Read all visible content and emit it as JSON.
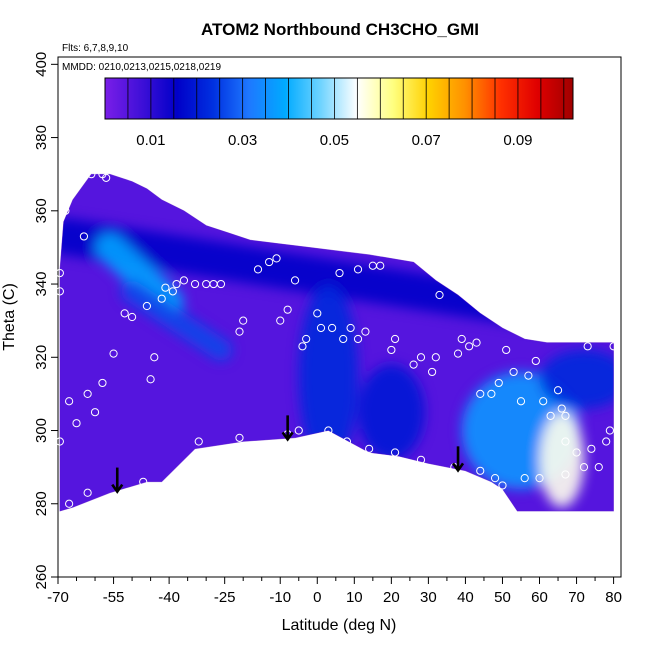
{
  "chart_data": {
    "type": "heatmap",
    "title": "ATOM2 Northbound CH3CHO_GMI",
    "annotations": {
      "flights": "Flts: 6,7,8,9,10",
      "mmdd": "MMDD: 0210,0213,0215,0218,0219"
    },
    "xlabel": "Latitude (deg N)",
    "ylabel": "Theta (C)",
    "xlim": [
      -70,
      82
    ],
    "ylim": [
      260,
      402
    ],
    "x_ticks": [
      -70,
      -55,
      -40,
      -25,
      -10,
      0,
      10,
      20,
      30,
      40,
      50,
      60,
      70,
      80
    ],
    "x_minor_ticks": [
      -65,
      -60,
      -50,
      -45,
      -35,
      -30,
      -20,
      -15,
      -5,
      5,
      15,
      25,
      35,
      45,
      55,
      65,
      75
    ],
    "y_ticks": [
      260,
      280,
      300,
      320,
      340,
      360,
      380,
      400
    ],
    "colorbar": {
      "range": [
        0,
        0.102
      ],
      "ticks": [
        0.01,
        0.03,
        0.05,
        0.07,
        0.09
      ],
      "colors": [
        "#7a1ee8",
        "#4010d8",
        "#0000c8",
        "#0030e0",
        "#1e78ff",
        "#00aaff",
        "#70d4ff",
        "#ffffff",
        "#ffff80",
        "#ffd000",
        "#ff9000",
        "#ff3000",
        "#e00000",
        "#a00000"
      ]
    },
    "envelope": {
      "top": [
        [
          -69.5,
          344
        ],
        [
          -68.5,
          357
        ],
        [
          -66,
          363
        ],
        [
          -61,
          370
        ],
        [
          -56,
          370
        ],
        [
          -50,
          368
        ],
        [
          -46,
          366
        ],
        [
          -42,
          363
        ],
        [
          -36,
          360
        ],
        [
          -30,
          356
        ],
        [
          -24,
          354
        ],
        [
          -18,
          352
        ],
        [
          -10,
          351
        ],
        [
          -2,
          350
        ],
        [
          6,
          349
        ],
        [
          14,
          348
        ],
        [
          20,
          347
        ],
        [
          26,
          346
        ],
        [
          32,
          341
        ],
        [
          38,
          337
        ],
        [
          44,
          332
        ],
        [
          50,
          328
        ],
        [
          56,
          325
        ],
        [
          62,
          324
        ],
        [
          70,
          324
        ],
        [
          80,
          324
        ]
      ],
      "bottom": [
        [
          -69.5,
          278
        ],
        [
          -66,
          279
        ],
        [
          -56,
          283
        ],
        [
          -46,
          286
        ],
        [
          -42,
          286
        ],
        [
          -33,
          295
        ],
        [
          -20,
          297
        ],
        [
          -6,
          298
        ],
        [
          3,
          300
        ],
        [
          14,
          294
        ],
        [
          22,
          293
        ],
        [
          30,
          291
        ],
        [
          40,
          289
        ],
        [
          47,
          286
        ],
        [
          50,
          284
        ],
        [
          54,
          278
        ],
        [
          80,
          278
        ]
      ]
    },
    "field": {
      "background": 0.005,
      "features": [
        {
          "label": "upper band",
          "kind": "line",
          "from": [
            -68,
            353
          ],
          "to": [
            72,
            331
          ],
          "value": 0.015,
          "width": 5
        },
        {
          "label": "cyan streak",
          "kind": "line",
          "from": [
            -56,
            350
          ],
          "to": [
            -40,
            335
          ],
          "value": 0.038,
          "width": 4
        },
        {
          "label": "mid streak",
          "kind": "line",
          "from": [
            -50,
            338
          ],
          "to": [
            -26,
            322
          ],
          "value": 0.026,
          "width": 3
        },
        {
          "label": "equator plume",
          "kind": "blob",
          "at": [
            3,
            315
          ],
          "value": 0.022,
          "rx": 8,
          "ry": 25
        },
        {
          "label": "mid-lat plume",
          "kind": "blob",
          "at": [
            20,
            305
          ],
          "value": 0.02,
          "rx": 9,
          "ry": 13
        },
        {
          "label": "northern tongue",
          "kind": "blob",
          "at": [
            55,
            300
          ],
          "value": 0.036,
          "rx": 16,
          "ry": 16
        },
        {
          "label": "northern core",
          "kind": "blob",
          "at": [
            66,
            292
          ],
          "value": 0.056,
          "rx": 6,
          "ry": 13
        },
        {
          "label": "arctic cap",
          "kind": "blob",
          "at": [
            72,
            314
          ],
          "value": 0.022,
          "rx": 12,
          "ry": 8
        }
      ]
    },
    "points": [
      [
        -61,
        370
      ],
      [
        -58,
        370
      ],
      [
        -57,
        369
      ],
      [
        -69.5,
        343
      ],
      [
        -69.5,
        338
      ],
      [
        -68,
        360
      ],
      [
        -63,
        353
      ],
      [
        -67,
        308
      ],
      [
        -65,
        302
      ],
      [
        -62,
        310
      ],
      [
        -60,
        305
      ],
      [
        -58,
        313
      ],
      [
        -55,
        321
      ],
      [
        -52,
        332
      ],
      [
        -50,
        331
      ],
      [
        -45,
        314
      ],
      [
        -44,
        320
      ],
      [
        -46,
        334
      ],
      [
        -42,
        336
      ],
      [
        -41,
        339
      ],
      [
        -39,
        338
      ],
      [
        -38,
        340
      ],
      [
        -36,
        341
      ],
      [
        -33,
        340
      ],
      [
        -30,
        340
      ],
      [
        -28,
        340
      ],
      [
        -26,
        340
      ],
      [
        -21,
        327
      ],
      [
        -20,
        330
      ],
      [
        -16,
        344
      ],
      [
        -13,
        346
      ],
      [
        -11,
        347
      ],
      [
        -8,
        333
      ],
      [
        -10,
        330
      ],
      [
        -6,
        341
      ],
      [
        -3,
        325
      ],
      [
        -4,
        323
      ],
      [
        1,
        328
      ],
      [
        0,
        332
      ],
      [
        4,
        328
      ],
      [
        6,
        343
      ],
      [
        7,
        325
      ],
      [
        9,
        328
      ],
      [
        11,
        325
      ],
      [
        11,
        344
      ],
      [
        13,
        327
      ],
      [
        15,
        345
      ],
      [
        17,
        345
      ],
      [
        20,
        322
      ],
      [
        21,
        325
      ],
      [
        26,
        318
      ],
      [
        28,
        320
      ],
      [
        31,
        316
      ],
      [
        32,
        320
      ],
      [
        33,
        337
      ],
      [
        36,
        344
      ],
      [
        38,
        321
      ],
      [
        39,
        325
      ],
      [
        41,
        323
      ],
      [
        43,
        324
      ],
      [
        44,
        310
      ],
      [
        47,
        310
      ],
      [
        49,
        313
      ],
      [
        51,
        322
      ],
      [
        53,
        316
      ],
      [
        55,
        308
      ],
      [
        57,
        315
      ],
      [
        59,
        319
      ],
      [
        61,
        308
      ],
      [
        63,
        304
      ],
      [
        65,
        311
      ],
      [
        66,
        306
      ],
      [
        67,
        304
      ],
      [
        67,
        297
      ],
      [
        70,
        294
      ],
      [
        72,
        290
      ],
      [
        74,
        295
      ],
      [
        76,
        290
      ],
      [
        78,
        297
      ],
      [
        79,
        300
      ],
      [
        80,
        323
      ],
      [
        73,
        323
      ],
      [
        -69.5,
        297
      ],
      [
        -67,
        280
      ],
      [
        -62,
        283
      ],
      [
        -47,
        286
      ],
      [
        -32,
        297
      ],
      [
        -21,
        298
      ],
      [
        -8,
        299
      ],
      [
        -5,
        300
      ],
      [
        3,
        300
      ],
      [
        8,
        297
      ],
      [
        14,
        295
      ],
      [
        21,
        294
      ],
      [
        28,
        292
      ],
      [
        37,
        290
      ],
      [
        44,
        289
      ],
      [
        48,
        287
      ],
      [
        50,
        285
      ],
      [
        56,
        287
      ],
      [
        60,
        287
      ],
      [
        67,
        288
      ]
    ],
    "arrows_at_latitude": [
      -54,
      -8,
      38
    ]
  }
}
